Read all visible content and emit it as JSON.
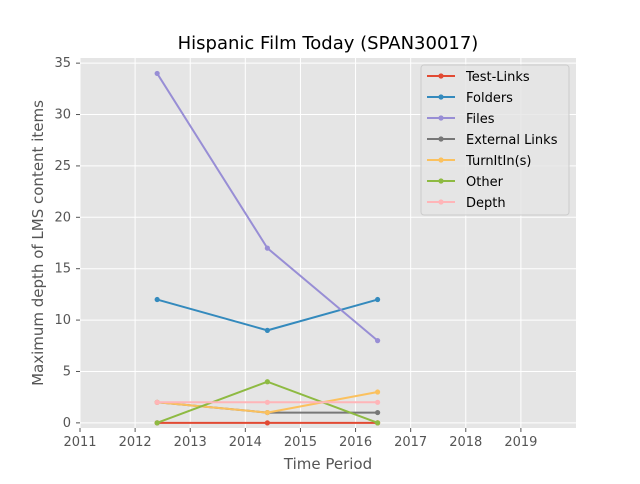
{
  "chart_data": {
    "type": "line",
    "title": "Hispanic Film Today (SPAN30017)",
    "xlabel": "Time Period",
    "ylabel": "Maximum depth of LMS content items",
    "xlim": [
      2011,
      2020
    ],
    "ylim": [
      -0.5,
      35.5
    ],
    "x_ticks": [
      "2011",
      "2012",
      "2013",
      "2014",
      "2015",
      "2016",
      "2017",
      "2018",
      "2019"
    ],
    "y_ticks": [
      "0",
      "5",
      "10",
      "15",
      "20",
      "25",
      "30",
      "35"
    ],
    "x": [
      2012.4,
      2014.4,
      2016.4
    ],
    "grid": true,
    "legend_position": "top-right",
    "series": [
      {
        "name": "Test-Links",
        "color": "#E24A33",
        "values": [
          0,
          0,
          0
        ]
      },
      {
        "name": "Folders",
        "color": "#348ABD",
        "values": [
          12,
          9,
          12
        ]
      },
      {
        "name": "Files",
        "color": "#988ED5",
        "values": [
          34,
          17,
          8
        ]
      },
      {
        "name": "External Links",
        "color": "#777777",
        "values": [
          2,
          1,
          1
        ]
      },
      {
        "name": "TurnItIn(s)",
        "color": "#FBC15E",
        "values": [
          2,
          1,
          3
        ]
      },
      {
        "name": "Other",
        "color": "#8EBA42",
        "values": [
          0,
          4,
          0
        ]
      },
      {
        "name": "Depth",
        "color": "#FFB5B8",
        "values": [
          2,
          2,
          2
        ]
      }
    ]
  }
}
